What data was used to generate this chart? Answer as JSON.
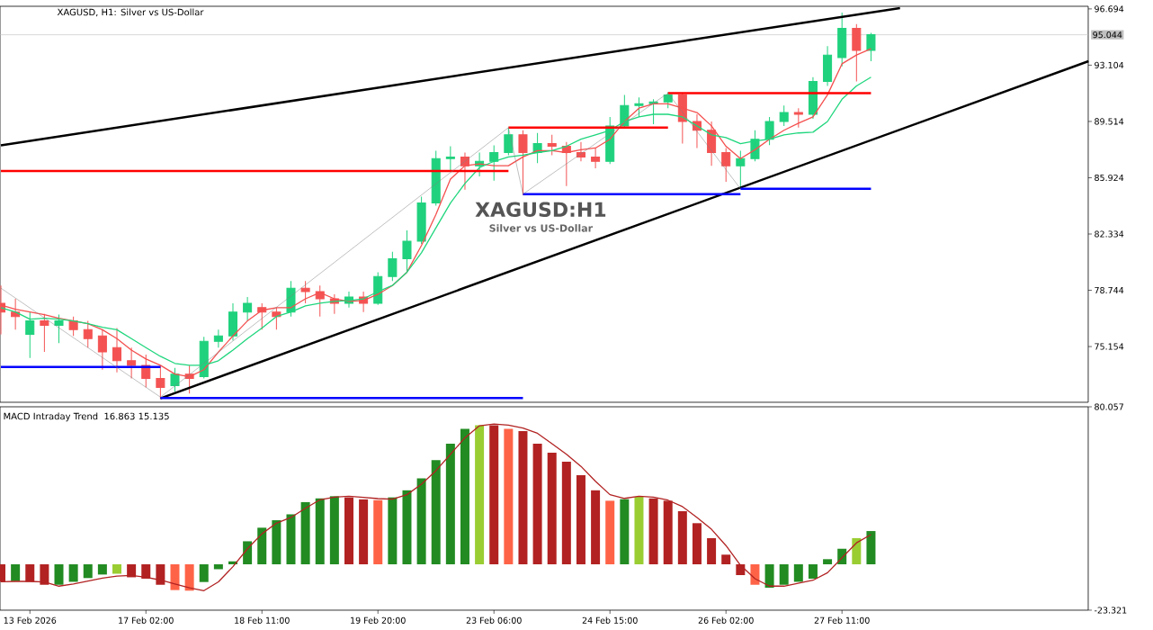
{
  "chart_data": [
    {
      "type": "candlestick",
      "title": "XAGUSD, H1:  Silver vs US-Dollar",
      "annotations": [
        "XAGUSD:H1",
        "Silver vs US-Dollar"
      ],
      "categories": [
        null,
        null,
        null,
        null,
        null,
        null,
        null,
        null,
        null,
        null,
        null,
        null,
        null,
        null,
        null,
        null,
        null,
        null,
        null,
        null,
        null,
        null,
        null,
        null,
        null,
        null,
        null,
        null,
        null,
        null,
        null,
        null,
        null,
        null,
        null,
        null,
        null,
        null,
        null,
        null,
        null,
        null,
        null,
        null,
        null,
        null,
        null,
        null,
        null,
        null,
        null,
        null,
        null,
        null,
        null,
        null,
        null,
        null,
        null,
        null,
        null,
        null,
        null,
        null,
        null,
        null,
        null,
        null,
        null,
        null,
        null,
        null,
        null,
        null,
        null,
        null
      ],
      "tick_labels": "y",
      "ylim": [
        71.6,
        96.86
      ],
      "yticks": [
        75.154,
        78.744,
        82.334,
        85.924,
        89.514,
        93.104,
        96.694
      ],
      "ref_lines": [
        {
          "axis": "y",
          "value": 95.044,
          "label": "95.044",
          "color": "#c0c0c0"
        }
      ],
      "ohlc": [
        [
          77.92,
          79.05,
          75.94,
          77.36
        ],
        [
          77.36,
          78.2,
          76.23,
          77.07
        ],
        [
          75.94,
          77.36,
          74.42,
          76.79
        ],
        [
          76.79,
          77.24,
          74.81,
          76.51
        ],
        [
          76.51,
          77.19,
          75.38,
          76.79
        ],
        [
          76.79,
          77.07,
          75.83,
          76.23
        ],
        [
          76.23,
          76.79,
          75.09,
          75.66
        ],
        [
          75.83,
          76.23,
          73.68,
          74.81
        ],
        [
          75.09,
          76.34,
          73.51,
          74.25
        ],
        [
          74.25,
          75.09,
          73.12,
          73.96
        ],
        [
          73.96,
          74.64,
          72.55,
          73.12
        ],
        [
          73.12,
          73.96,
          71.82,
          72.55
        ],
        [
          72.66,
          73.8,
          72.27,
          73.4
        ],
        [
          73.4,
          73.96,
          72.16,
          73.12
        ],
        [
          73.23,
          75.77,
          73.12,
          75.49
        ],
        [
          75.49,
          76.23,
          75.09,
          75.83
        ],
        [
          75.83,
          77.92,
          75.55,
          77.36
        ],
        [
          77.36,
          78.32,
          76.79,
          77.92
        ],
        [
          77.64,
          77.92,
          76.23,
          77.36
        ],
        [
          77.36,
          77.64,
          76.23,
          77.07
        ],
        [
          77.36,
          79.34,
          77.07,
          78.88
        ],
        [
          78.88,
          79.34,
          77.92,
          78.66
        ],
        [
          78.66,
          79.05,
          77.07,
          78.2
        ],
        [
          78.2,
          78.49,
          77.24,
          77.92
        ],
        [
          77.92,
          78.66,
          77.64,
          78.32
        ],
        [
          78.32,
          78.66,
          77.36,
          77.92
        ],
        [
          77.92,
          79.9,
          77.81,
          79.62
        ],
        [
          79.62,
          81.2,
          79.34,
          80.75
        ],
        [
          80.75,
          82.56,
          79.9,
          81.88
        ],
        [
          81.88,
          84.71,
          81.71,
          84.31
        ],
        [
          84.31,
          87.65,
          84.14,
          87.14
        ],
        [
          87.14,
          87.93,
          86.4,
          87.25
        ],
        [
          87.25,
          87.53,
          85.16,
          86.69
        ],
        [
          86.69,
          87.53,
          86.01,
          86.97
        ],
        [
          86.97,
          87.99,
          85.73,
          87.53
        ],
        [
          87.53,
          89.12,
          87.36,
          88.66
        ],
        [
          88.66,
          88.95,
          84.82,
          87.53
        ],
        [
          87.53,
          88.78,
          86.86,
          88.1
        ],
        [
          88.1,
          88.66,
          87.36,
          87.93
        ],
        [
          87.93,
          88.21,
          85.39,
          87.53
        ],
        [
          87.53,
          88.21,
          86.97,
          87.25
        ],
        [
          87.25,
          87.82,
          86.52,
          86.97
        ],
        [
          86.97,
          89.8,
          86.8,
          89.23
        ],
        [
          89.23,
          91.21,
          89.12,
          90.53
        ],
        [
          90.53,
          91.04,
          89.8,
          90.64
        ],
        [
          90.64,
          90.93,
          89.34,
          90.76
        ],
        [
          90.76,
          91.38,
          90.36,
          91.21
        ],
        [
          91.21,
          91.32,
          88.1,
          89.51
        ],
        [
          89.51,
          89.97,
          87.82,
          88.95
        ],
        [
          88.95,
          89.51,
          86.69,
          87.53
        ],
        [
          87.53,
          87.82,
          85.67,
          86.69
        ],
        [
          86.69,
          87.65,
          85.22,
          87.14
        ],
        [
          87.14,
          88.95,
          86.97,
          88.38
        ],
        [
          88.38,
          89.8,
          88.0,
          89.51
        ],
        [
          89.51,
          90.53,
          89.23,
          90.08
        ],
        [
          90.08,
          90.36,
          89.12,
          89.97
        ],
        [
          89.97,
          92.34,
          89.68,
          92.06
        ],
        [
          92.06,
          94.32,
          91.78,
          93.75
        ],
        [
          93.58,
          96.46,
          93.02,
          95.45
        ],
        [
          95.45,
          95.73,
          92.06,
          94.04
        ],
        [
          94.04,
          95.17,
          93.36,
          95.044
        ],
        null,
        null,
        null,
        null,
        null,
        null,
        null,
        null,
        null,
        null,
        null,
        null,
        null,
        null,
        null
      ],
      "series": [
        {
          "type": "line",
          "color": "#f4504f",
          "values": [
            77.81,
            77.53,
            77.36,
            77.19,
            76.96,
            76.79,
            76.62,
            76.23,
            75.66,
            74.93,
            74.36,
            73.96,
            73.4,
            73.23,
            73.68,
            74.81,
            75.83,
            76.79,
            77.47,
            77.64,
            77.64,
            78.2,
            78.6,
            78.2,
            78.04,
            78.09,
            78.49,
            79.05,
            79.9,
            81.6,
            83.58,
            85.84,
            86.69,
            86.8,
            86.69,
            86.69,
            87.25,
            87.65,
            87.65,
            87.53,
            87.71,
            87.82,
            88.38,
            89.51,
            90.36,
            90.64,
            90.64,
            90.36,
            90.08,
            89.23,
            87.93,
            87.14,
            87.71,
            88.38,
            88.95,
            89.4,
            89.8,
            91.21,
            93.19,
            93.75,
            94.15,
            null,
            null,
            null,
            null,
            null,
            null,
            null,
            null,
            null,
            null,
            null,
            null,
            null,
            null,
            null
          ]
        },
        {
          "type": "line",
          "color": "#1fd67d",
          "values": [
            77.64,
            77.36,
            76.9,
            76.96,
            76.9,
            76.79,
            76.62,
            76.39,
            76.23,
            75.66,
            75.09,
            74.53,
            74.08,
            73.96,
            73.96,
            74.25,
            74.93,
            75.66,
            76.34,
            77.07,
            77.36,
            77.75,
            77.92,
            78.04,
            78.09,
            78.2,
            78.66,
            79.05,
            79.9,
            81.14,
            82.73,
            84.31,
            85.56,
            86.57,
            86.97,
            87.25,
            87.36,
            87.53,
            87.65,
            87.93,
            88.38,
            88.66,
            88.95,
            89.51,
            89.8,
            89.97,
            89.97,
            89.8,
            89.23,
            88.66,
            88.49,
            88.1,
            88.27,
            88.38,
            88.66,
            88.78,
            88.83,
            89.51,
            90.93,
            91.78,
            92.34,
            null,
            null,
            null,
            null,
            null,
            null,
            null,
            null,
            null,
            null,
            null,
            null,
            null,
            null,
            null
          ]
        },
        {
          "type": "line",
          "color": "#000000",
          "values": [
            87.99,
            null,
            null,
            null,
            null,
            null,
            null,
            null,
            null,
            null,
            null,
            null,
            null,
            null,
            null,
            null,
            null,
            null,
            null,
            null,
            null,
            null,
            null,
            null,
            null,
            null,
            null,
            null,
            null,
            null,
            null,
            null,
            null,
            null,
            null,
            null,
            null,
            null,
            null,
            null,
            null,
            null,
            null,
            null,
            null,
            null,
            null,
            null,
            null,
            null,
            null,
            null,
            null,
            null,
            null,
            null,
            null,
            null,
            null,
            null,
            null,
            null,
            96.75,
            null,
            null,
            null,
            null,
            null,
            null,
            null,
            null,
            null,
            null,
            null,
            null,
            null
          ]
        },
        {
          "type": "line",
          "color": "#000000",
          "values": [
            null,
            null,
            null,
            null,
            null,
            null,
            null,
            null,
            null,
            null,
            null,
            71.85,
            null,
            null,
            null,
            null,
            null,
            null,
            null,
            null,
            null,
            null,
            null,
            null,
            null,
            null,
            null,
            null,
            null,
            null,
            null,
            null,
            null,
            null,
            null,
            null,
            null,
            null,
            null,
            null,
            null,
            null,
            null,
            null,
            null,
            null,
            null,
            null,
            null,
            null,
            null,
            null,
            null,
            null,
            null,
            null,
            null,
            null,
            null,
            null,
            null,
            null,
            null,
            null,
            null,
            null,
            null,
            null,
            null,
            null,
            null,
            null,
            null,
            null,
            null,
            93.36
          ]
        },
        {
          "type": "line",
          "color": "#ff0000",
          "values": [
            86.35,
            null,
            null,
            null,
            null,
            null,
            null,
            null,
            null,
            null,
            null,
            null,
            null,
            null,
            null,
            null,
            null,
            null,
            null,
            null,
            null,
            null,
            null,
            null,
            null,
            null,
            null,
            null,
            null,
            null,
            null,
            null,
            null,
            null,
            null,
            86.35,
            null,
            null,
            null,
            null,
            null,
            null,
            null,
            null,
            null,
            null,
            null,
            null,
            null,
            null,
            null,
            null,
            null,
            null,
            null,
            null,
            null,
            null,
            null,
            null,
            null,
            null,
            null,
            null,
            null,
            null,
            null,
            null,
            null,
            null,
            null,
            null,
            null,
            null,
            null,
            null
          ]
        },
        {
          "type": "line",
          "color": "#ff0000",
          "values": [
            null,
            null,
            null,
            null,
            null,
            null,
            null,
            null,
            null,
            null,
            null,
            null,
            null,
            null,
            null,
            null,
            null,
            null,
            null,
            null,
            null,
            null,
            null,
            null,
            null,
            null,
            null,
            null,
            null,
            null,
            null,
            null,
            null,
            null,
            null,
            89.12,
            null,
            null,
            null,
            null,
            null,
            null,
            null,
            null,
            null,
            null,
            89.12,
            null,
            null,
            null,
            null,
            null,
            null,
            null,
            null,
            null,
            null,
            null,
            null,
            null,
            null,
            null,
            null,
            null,
            null,
            null,
            null,
            null,
            null,
            null,
            null,
            null,
            null,
            null,
            null,
            null
          ]
        },
        {
          "type": "line",
          "color": "#ff0000",
          "values": [
            null,
            null,
            null,
            null,
            null,
            null,
            null,
            null,
            null,
            null,
            null,
            null,
            null,
            null,
            null,
            null,
            null,
            null,
            null,
            null,
            null,
            null,
            null,
            null,
            null,
            null,
            null,
            null,
            null,
            null,
            null,
            null,
            null,
            null,
            null,
            null,
            null,
            null,
            null,
            null,
            null,
            null,
            null,
            null,
            null,
            null,
            91.32,
            null,
            null,
            null,
            null,
            null,
            null,
            null,
            null,
            null,
            null,
            null,
            null,
            null,
            91.32,
            null,
            null,
            null,
            null,
            null,
            null,
            null,
            null,
            null,
            null,
            null,
            null,
            null,
            null,
            null
          ]
        },
        {
          "type": "line",
          "color": "#0000ff",
          "values": [
            73.85,
            null,
            null,
            null,
            null,
            null,
            null,
            null,
            null,
            null,
            null,
            73.85,
            null,
            null,
            null,
            null,
            null,
            null,
            null,
            null,
            null,
            null,
            null,
            null,
            null,
            null,
            null,
            null,
            null,
            null,
            null,
            null,
            null,
            null,
            null,
            null,
            null,
            null,
            null,
            null,
            null,
            null,
            null,
            null,
            null,
            null,
            null,
            null,
            null,
            null,
            null,
            null,
            null,
            null,
            null,
            null,
            null,
            null,
            null,
            null,
            null,
            null,
            null,
            null,
            null,
            null,
            null,
            null,
            null,
            null,
            null,
            null,
            null,
            null,
            null,
            null
          ]
        },
        {
          "type": "line",
          "color": "#0000ff",
          "values": [
            null,
            null,
            null,
            null,
            null,
            null,
            null,
            null,
            null,
            null,
            null,
            71.87,
            null,
            null,
            null,
            null,
            null,
            null,
            null,
            null,
            null,
            null,
            null,
            null,
            null,
            null,
            null,
            null,
            null,
            null,
            null,
            null,
            null,
            null,
            null,
            null,
            71.87,
            null,
            null,
            null,
            null,
            null,
            null,
            null,
            null,
            null,
            null,
            null,
            null,
            null,
            null,
            null,
            null,
            null,
            null,
            null,
            null,
            null,
            null,
            null,
            null,
            null,
            null,
            null,
            null,
            null,
            null,
            null,
            null,
            null,
            null,
            null,
            null,
            null,
            null,
            null
          ]
        },
        {
          "type": "line",
          "color": "#0000ff",
          "values": [
            null,
            null,
            null,
            null,
            null,
            null,
            null,
            null,
            null,
            null,
            null,
            null,
            null,
            null,
            null,
            null,
            null,
            null,
            null,
            null,
            null,
            null,
            null,
            null,
            null,
            null,
            null,
            null,
            null,
            null,
            null,
            null,
            null,
            null,
            null,
            null,
            84.88,
            null,
            null,
            null,
            null,
            null,
            null,
            null,
            null,
            null,
            null,
            null,
            null,
            null,
            null,
            84.88,
            null,
            null,
            null,
            null,
            null,
            null,
            null,
            null,
            null,
            null,
            null,
            null,
            null,
            null,
            null,
            null,
            null,
            null,
            null,
            null,
            null,
            null,
            null,
            null
          ]
        },
        {
          "type": "line",
          "color": "#0000ff",
          "values": [
            null,
            null,
            null,
            null,
            null,
            null,
            null,
            null,
            null,
            null,
            null,
            null,
            null,
            null,
            null,
            null,
            null,
            null,
            null,
            null,
            null,
            null,
            null,
            null,
            null,
            null,
            null,
            null,
            null,
            null,
            null,
            null,
            null,
            null,
            null,
            null,
            null,
            null,
            null,
            null,
            null,
            null,
            null,
            null,
            null,
            null,
            null,
            null,
            null,
            null,
            null,
            85.22,
            null,
            null,
            null,
            null,
            null,
            null,
            null,
            null,
            85.22,
            null,
            null,
            null,
            null,
            null,
            null,
            null,
            null,
            null,
            null,
            null,
            null,
            null,
            null,
            null
          ]
        },
        {
          "type": "line",
          "color": "#808080",
          "values": [
            78.88,
            null,
            null,
            null,
            null,
            null,
            null,
            null,
            null,
            null,
            null,
            71.93,
            null,
            null,
            null,
            null,
            null,
            null,
            null,
            null,
            null,
            null,
            null,
            null,
            null,
            null,
            null,
            null,
            null,
            null,
            null,
            null,
            null,
            null,
            null,
            89.12,
            84.88,
            null,
            null,
            null,
            null,
            null,
            null,
            null,
            null,
            null,
            91.32,
            null,
            null,
            null,
            null,
            85.22,
            null,
            null,
            null,
            null,
            null,
            null,
            null,
            null,
            null,
            null,
            null,
            null,
            null,
            null,
            null,
            null,
            null,
            null,
            null,
            null,
            null,
            null,
            null,
            null
          ]
        }
      ]
    },
    {
      "type": "bar",
      "title": "MACD Intraday Trend",
      "annotations": [
        "16.863",
        "15.135"
      ],
      "categories": [
        null,
        null,
        "13 Feb 2026",
        null,
        null,
        null,
        null,
        null,
        null,
        null,
        "17 Feb 02:00",
        null,
        null,
        null,
        null,
        null,
        null,
        null,
        "18 Feb 11:00",
        null,
        null,
        null,
        null,
        null,
        null,
        null,
        "19 Feb 20:00",
        null,
        null,
        null,
        null,
        null,
        null,
        null,
        "23 Feb 06:00",
        null,
        null,
        null,
        null,
        null,
        null,
        null,
        "24 Feb 15:00",
        null,
        null,
        null,
        null,
        null,
        null,
        null,
        "26 Feb 02:00",
        null,
        null,
        null,
        null,
        null,
        null,
        null,
        "27 Feb 11:00",
        null,
        null,
        null,
        null,
        null,
        null,
        null,
        null,
        null,
        null,
        null,
        null,
        null,
        null,
        null,
        null,
        null
      ],
      "ylim": [
        -23.321,
        80.057
      ],
      "yticks": [
        -23.321,
        80.057
      ],
      "series": [
        {
          "type": "bar",
          "colors": [
            "#b22222",
            "#228b22",
            "#b22222",
            "#b22222",
            "#228b22",
            "#228b22",
            "#228b22",
            "#228b22",
            "#9acd32",
            "#b22222",
            "#b22222",
            "#b22222",
            "#ff6347",
            "#ff6347",
            "#228b22",
            "#228b22",
            "#228b22",
            "#228b22",
            "#228b22",
            "#228b22",
            "#228b22",
            "#228b22",
            "#228b22",
            "#228b22",
            "#b22222",
            "#b22222",
            "#ff6347",
            "#228b22",
            "#228b22",
            "#228b22",
            "#228b22",
            "#228b22",
            "#228b22",
            "#9acd32",
            "#b22222",
            "#ff6347",
            "#b22222",
            "#b22222",
            "#b22222",
            "#b22222",
            "#b22222",
            "#b22222",
            "#ff6347",
            "#228b22",
            "#9acd32",
            "#b22222",
            "#b22222",
            "#b22222",
            "#b22222",
            "#b22222",
            "#b22222",
            "#b22222",
            "#ff6347",
            "#228b22",
            "#228b22",
            "#228b22",
            "#228b22",
            "#228b22",
            "#228b22",
            "#9acd32",
            "#228b22",
            null,
            null,
            null,
            null,
            null,
            null,
            null,
            null,
            null,
            null,
            null,
            null,
            null,
            null,
            null
          ],
          "values": [
            -8.9,
            -8.6,
            -8.9,
            -10.4,
            -10.4,
            -8.9,
            -7.0,
            -5.2,
            -4.8,
            -6.6,
            -7.3,
            -10.4,
            -13.1,
            -13.4,
            -9.0,
            -2.5,
            1.5,
            11.7,
            18.6,
            22.4,
            25.4,
            31.6,
            33.5,
            34.6,
            34.0,
            33.0,
            32.6,
            34.0,
            37.6,
            43.7,
            52.9,
            61.3,
            68.9,
            70.7,
            70.7,
            68.9,
            67.7,
            61.3,
            56.7,
            52.1,
            45.3,
            37.6,
            32.3,
            33.1,
            34.3,
            33.5,
            32.3,
            27.0,
            20.9,
            13.3,
            4.9,
            -5.5,
            -10.4,
            -11.9,
            -10.4,
            -8.9,
            -7.3,
            2.6,
            7.9,
            13.3,
            16.9,
            null,
            null,
            null,
            null,
            null,
            null,
            null,
            null,
            null,
            null,
            null,
            null,
            null,
            null,
            null
          ]
        },
        {
          "type": "line",
          "color": "#b22222",
          "values": [
            -8.9,
            -8.7,
            -8.7,
            -9.0,
            -11.1,
            -10.0,
            -8.5,
            -7.0,
            -6.0,
            -5.7,
            -6.6,
            -8.0,
            -10.0,
            -12.0,
            -13.4,
            -8.9,
            -1.2,
            7.9,
            15.5,
            20.9,
            23.8,
            28.5,
            32.8,
            34.1,
            34.6,
            34.0,
            33.4,
            33.1,
            35.4,
            40.7,
            47.6,
            55.9,
            64.3,
            70.4,
            71.3,
            70.7,
            69.2,
            66.6,
            61.3,
            55.9,
            49.8,
            42.2,
            35.4,
            33.5,
            34.6,
            34.1,
            32.6,
            29.3,
            23.8,
            17.8,
            9.5,
            -0.5,
            -7.3,
            -11.1,
            -11.1,
            -9.6,
            -8.1,
            -4.3,
            3.3,
            10.9,
            15.1,
            null,
            null,
            null,
            null,
            null,
            null,
            null,
            null,
            null,
            null,
            null,
            null,
            null,
            null,
            null
          ]
        }
      ]
    }
  ]
}
